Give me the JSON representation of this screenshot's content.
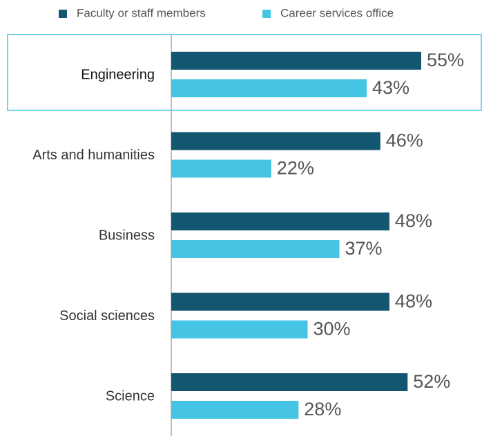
{
  "chart_data": {
    "type": "bar",
    "orientation": "horizontal",
    "categories": [
      "Engineering",
      "Arts and humanities",
      "Business",
      "Social sciences",
      "Science"
    ],
    "series": [
      {
        "name": "Faculty or staff members",
        "color": "#135670",
        "values": [
          55,
          46,
          48,
          48,
          52
        ],
        "value_labels": [
          "55%",
          "46%",
          "48%",
          "48%",
          "52%"
        ]
      },
      {
        "name": "Career services office",
        "color": "#45c5e3",
        "values": [
          43,
          22,
          37,
          30,
          28
        ],
        "value_labels": [
          "43%",
          "22%",
          "37%",
          "30%",
          "28%"
        ]
      }
    ],
    "highlighted_category": "Engineering",
    "legend": "top"
  }
}
